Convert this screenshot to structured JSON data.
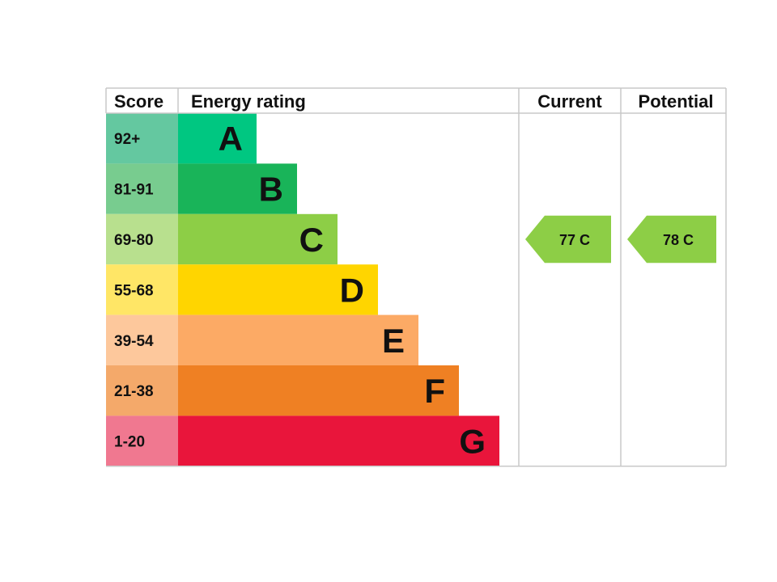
{
  "chart_data": {
    "type": "bar",
    "headers": {
      "score": "Score",
      "energy_rating": "Energy rating",
      "current": "Current",
      "potential": "Potential"
    },
    "bands": [
      {
        "letter": "A",
        "score_range": "92+",
        "color": "#00c781",
        "score_color": "#64c8a0"
      },
      {
        "letter": "B",
        "score_range": "81-91",
        "color": "#19b459",
        "score_color": "#78cc8f"
      },
      {
        "letter": "C",
        "score_range": "69-80",
        "color": "#8dce46",
        "score_color": "#b8e08e"
      },
      {
        "letter": "D",
        "score_range": "55-68",
        "color": "#ffd500",
        "score_color": "#ffe666"
      },
      {
        "letter": "E",
        "score_range": "39-54",
        "color": "#fcaa65",
        "score_color": "#fdc89c"
      },
      {
        "letter": "F",
        "score_range": "21-38",
        "color": "#ef8023",
        "score_color": "#f4a96a"
      },
      {
        "letter": "G",
        "score_range": "1-20",
        "color": "#e9153b",
        "score_color": "#f07890"
      }
    ],
    "current": {
      "score": 77,
      "band": "C",
      "label": "77 C",
      "color": "#8dce46"
    },
    "potential": {
      "score": 78,
      "band": "C",
      "label": "78 C",
      "color": "#8dce46"
    }
  }
}
